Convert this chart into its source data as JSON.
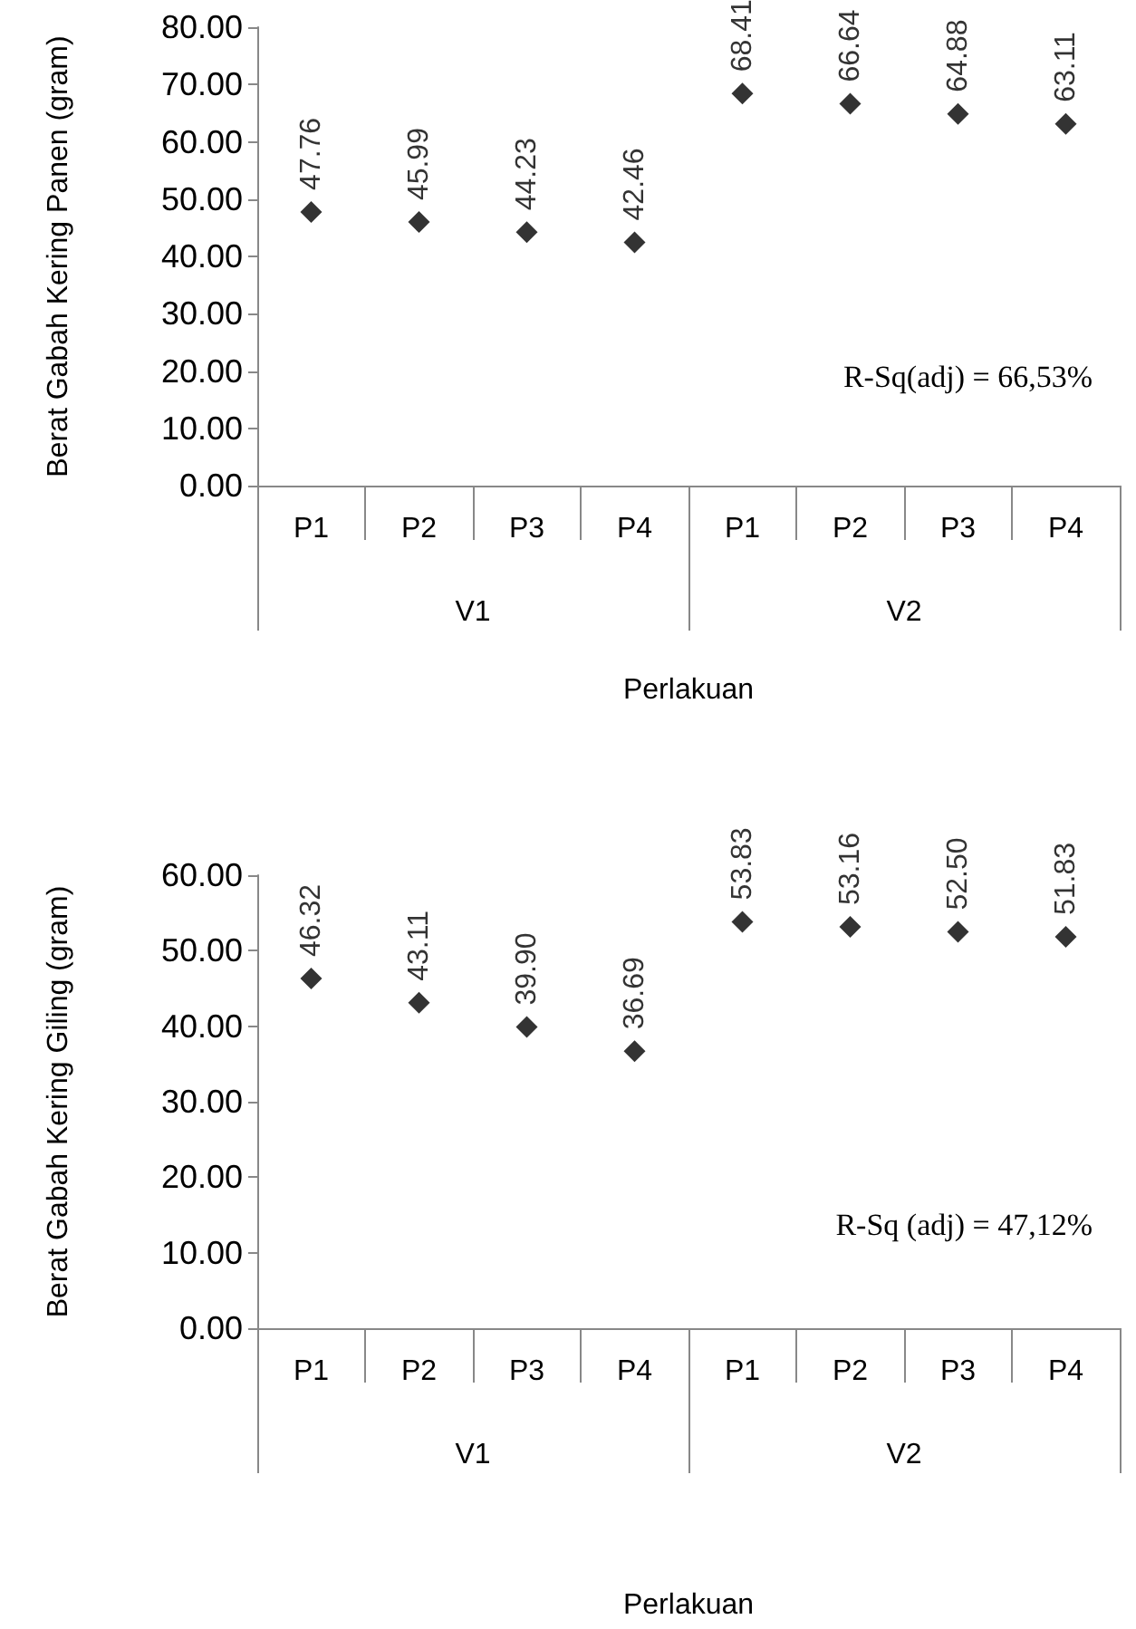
{
  "chart_data": [
    {
      "type": "scatter",
      "xlabel": "Perlakuan",
      "ylabel": "Berat Gabah Kering Panen (gram)",
      "categories": [
        "P1",
        "P2",
        "P3",
        "P4",
        "P1",
        "P2",
        "P3",
        "P4"
      ],
      "series": [
        {
          "color": "#000000",
          "values": [
            47.76,
            45.99,
            44.23,
            42.46,
            68.41,
            66.64,
            64.88,
            63.11
          ],
          "value_labels": [
            "47.76",
            "45.99",
            "44.23",
            "42.46",
            "68.41",
            "66.64",
            "64.88",
            "63.11"
          ]
        }
      ],
      "ylim": [
        0,
        80
      ],
      "yticks": [
        {
          "value": 0,
          "label": "0.00"
        },
        {
          "value": 10,
          "label": "10.00"
        },
        {
          "value": 20,
          "label": "20.00"
        },
        {
          "value": 30,
          "label": "30.00"
        },
        {
          "value": 40,
          "label": "40.00"
        },
        {
          "value": 50,
          "label": "50.00"
        },
        {
          "value": 60,
          "label": "60.00"
        },
        {
          "value": 70,
          "label": "70.00"
        },
        {
          "value": 80,
          "label": "80.00"
        }
      ],
      "annotations": [
        "V1",
        "V2",
        "R-Sq(adj) = 66,53%"
      ],
      "marker": "diamond"
    },
    {
      "type": "scatter",
      "xlabel": "Perlakuan",
      "ylabel": "Berat Gabah Kering Giling (gram)",
      "categories": [
        "P1",
        "P2",
        "P3",
        "P4",
        "P1",
        "P2",
        "P3",
        "P4"
      ],
      "series": [
        {
          "color": "#000000",
          "values": [
            46.32,
            43.11,
            39.9,
            36.69,
            53.83,
            53.16,
            52.5,
            51.83
          ],
          "value_labels": [
            "46.32",
            "43.11",
            "39.90",
            "36.69",
            "53.83",
            "53.16",
            "52.50",
            "51.83"
          ]
        }
      ],
      "ylim": [
        0,
        60
      ],
      "yticks": [
        {
          "value": 0,
          "label": "0.00"
        },
        {
          "value": 10,
          "label": "10.00"
        },
        {
          "value": 20,
          "label": "20.00"
        },
        {
          "value": 30,
          "label": "30.00"
        },
        {
          "value": 40,
          "label": "40.00"
        },
        {
          "value": 50,
          "label": "50.00"
        },
        {
          "value": 60,
          "label": "60.00"
        }
      ],
      "annotations": [
        "V1",
        "V2",
        "R-Sq (adj) = 47,12%"
      ],
      "marker": "diamond"
    }
  ]
}
